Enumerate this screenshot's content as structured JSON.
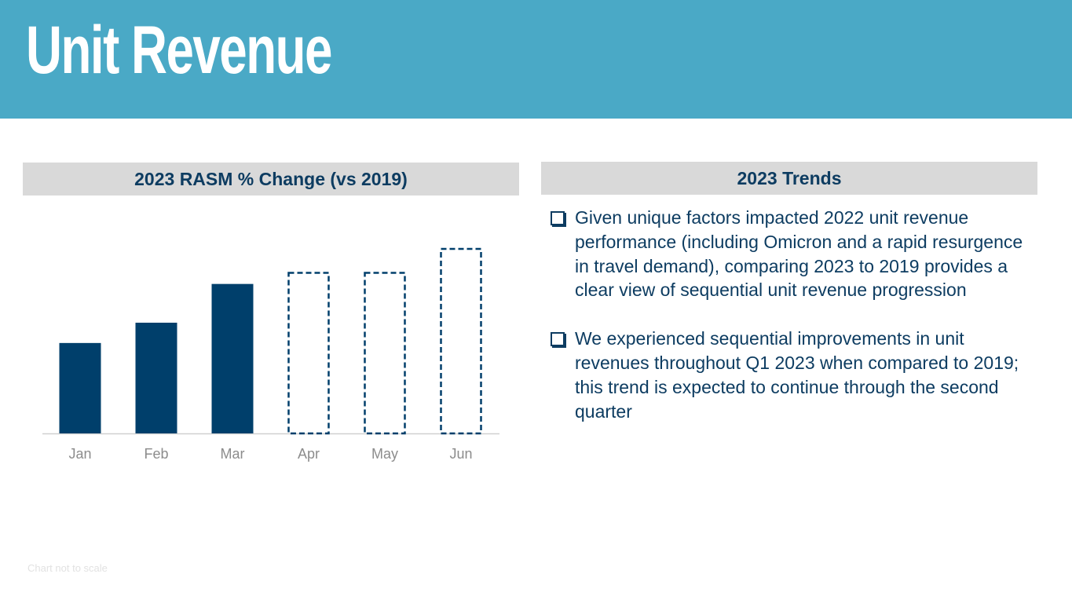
{
  "header": {
    "title": "Unit Revenue"
  },
  "left_panel": {
    "heading": "2023 RASM % Change (vs 2019)"
  },
  "right_panel": {
    "heading": "2023 Trends",
    "bullets": [
      "Given unique factors impacted 2022 unit revenue performance (including Omicron and a rapid resurgence in travel demand), comparing 2023 to 2019 provides a clear view of sequential unit revenue progression",
      "We experienced sequential improvements in unit revenues throughout Q1 2023 when compared to 2019; this trend is expected to continue through the second quarter"
    ]
  },
  "footnote": "Chart not to scale",
  "colors": {
    "header_bg": "#4aa9c6",
    "navy": "#0d3c61",
    "bar": "#003f6b",
    "panel_bg": "#d9d9d9"
  },
  "chart_data": {
    "type": "bar",
    "title": "2023 RASM % Change (vs 2019)",
    "categories": [
      "Jan",
      "Feb",
      "Mar",
      "Apr",
      "May",
      "Jun"
    ],
    "values": [
      49,
      60,
      81,
      87,
      87,
      100
    ],
    "series_style": [
      "actual",
      "actual",
      "actual",
      "expected",
      "expected",
      "expected"
    ],
    "xlabel": "",
    "ylabel": "",
    "ylim": [
      0,
      100
    ],
    "note": "Chart not to scale"
  }
}
